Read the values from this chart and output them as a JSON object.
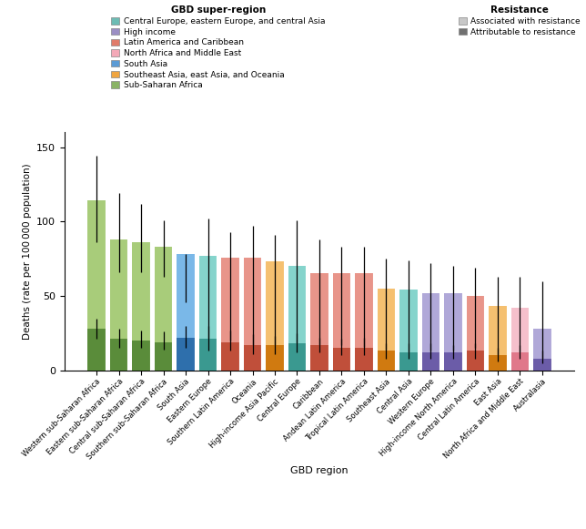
{
  "regions": [
    "Western sub-Saharan Africa",
    "Eastern sub-Saharan Africa",
    "Central sub-Saharan Africa",
    "Southern sub-Saharan Africa",
    "South Asia",
    "Eastern Europe",
    "Southern Latin America",
    "Oceania",
    "High-income Asia Pacific",
    "Central Europe",
    "Caribbean",
    "Andean Latin America",
    "Tropical Latin America",
    "Southeast Asia",
    "Central Asia",
    "Western Europe",
    "High-income North America",
    "Central Latin America",
    "East Asia",
    "North Africa and Middle East",
    "Australasia"
  ],
  "associated_values": [
    114,
    88,
    86,
    83,
    78,
    77,
    76,
    76,
    73,
    70,
    65,
    65,
    65,
    55,
    54,
    52,
    52,
    50,
    43,
    42,
    28
  ],
  "associated_err_high": [
    144,
    119,
    112,
    101,
    78,
    102,
    93,
    97,
    91,
    101,
    88,
    83,
    83,
    75,
    74,
    72,
    70,
    69,
    63,
    63,
    60
  ],
  "associated_err_low": [
    86,
    66,
    66,
    63,
    46,
    20,
    20,
    17,
    16,
    15,
    16,
    17,
    16,
    14,
    11,
    13,
    13,
    15,
    10,
    12,
    8
  ],
  "attributable_values": [
    28,
    21,
    20,
    19,
    22,
    21,
    19,
    17,
    17,
    18,
    17,
    15,
    15,
    13,
    12,
    12,
    12,
    13,
    10,
    12,
    8
  ],
  "attributable_err_high": [
    35,
    28,
    27,
    26,
    30,
    30,
    27,
    24,
    23,
    25,
    22,
    21,
    22,
    18,
    18,
    18,
    17,
    18,
    15,
    17,
    13
  ],
  "attributable_err_low": [
    21,
    15,
    15,
    14,
    15,
    13,
    13,
    11,
    11,
    12,
    12,
    10,
    10,
    8,
    8,
    8,
    8,
    8,
    6,
    8,
    5
  ],
  "super_region_colors_dark": [
    "#5a8c3a",
    "#5a8c3a",
    "#5a8c3a",
    "#5a8c3a",
    "#2e6fac",
    "#3a9990",
    "#c04f3a",
    "#c04f3a",
    "#d07a10",
    "#3a9990",
    "#c04f3a",
    "#c04f3a",
    "#c04f3a",
    "#d07a10",
    "#3a9990",
    "#6b5ca8",
    "#6b5ca8",
    "#c04f3a",
    "#d07a10",
    "#e0788a",
    "#6b5ca8"
  ],
  "super_region_colors_light": [
    "#a8cc7a",
    "#a8cc7a",
    "#a8cc7a",
    "#a8cc7a",
    "#7ab8e8",
    "#85d4cc",
    "#e8958a",
    "#e8958a",
    "#f5c070",
    "#85d4cc",
    "#e8958a",
    "#e8958a",
    "#e8958a",
    "#f5c070",
    "#85d4cc",
    "#b0a8d8",
    "#b0a8d8",
    "#e8958a",
    "#f5c070",
    "#f5c0cc",
    "#b0a8d8"
  ],
  "super_region_legend_colors": {
    "Central Europe, eastern Europe, and central Asia": "#6dbcb4",
    "High income": "#9b8ec4",
    "Latin America and Caribbean": "#e07b6a",
    "North Africa and Middle East": "#f4a9b8",
    "South Asia": "#5b9bd5",
    "Southeast Asia, east Asia, and Oceania": "#f0a540",
    "Sub-Saharan Africa": "#8ab365"
  },
  "ylabel": "Deaths (rate per 100 000 population)",
  "xlabel": "GBD region",
  "ylim": [
    0,
    160
  ],
  "yticks": [
    0,
    50,
    100,
    150
  ]
}
